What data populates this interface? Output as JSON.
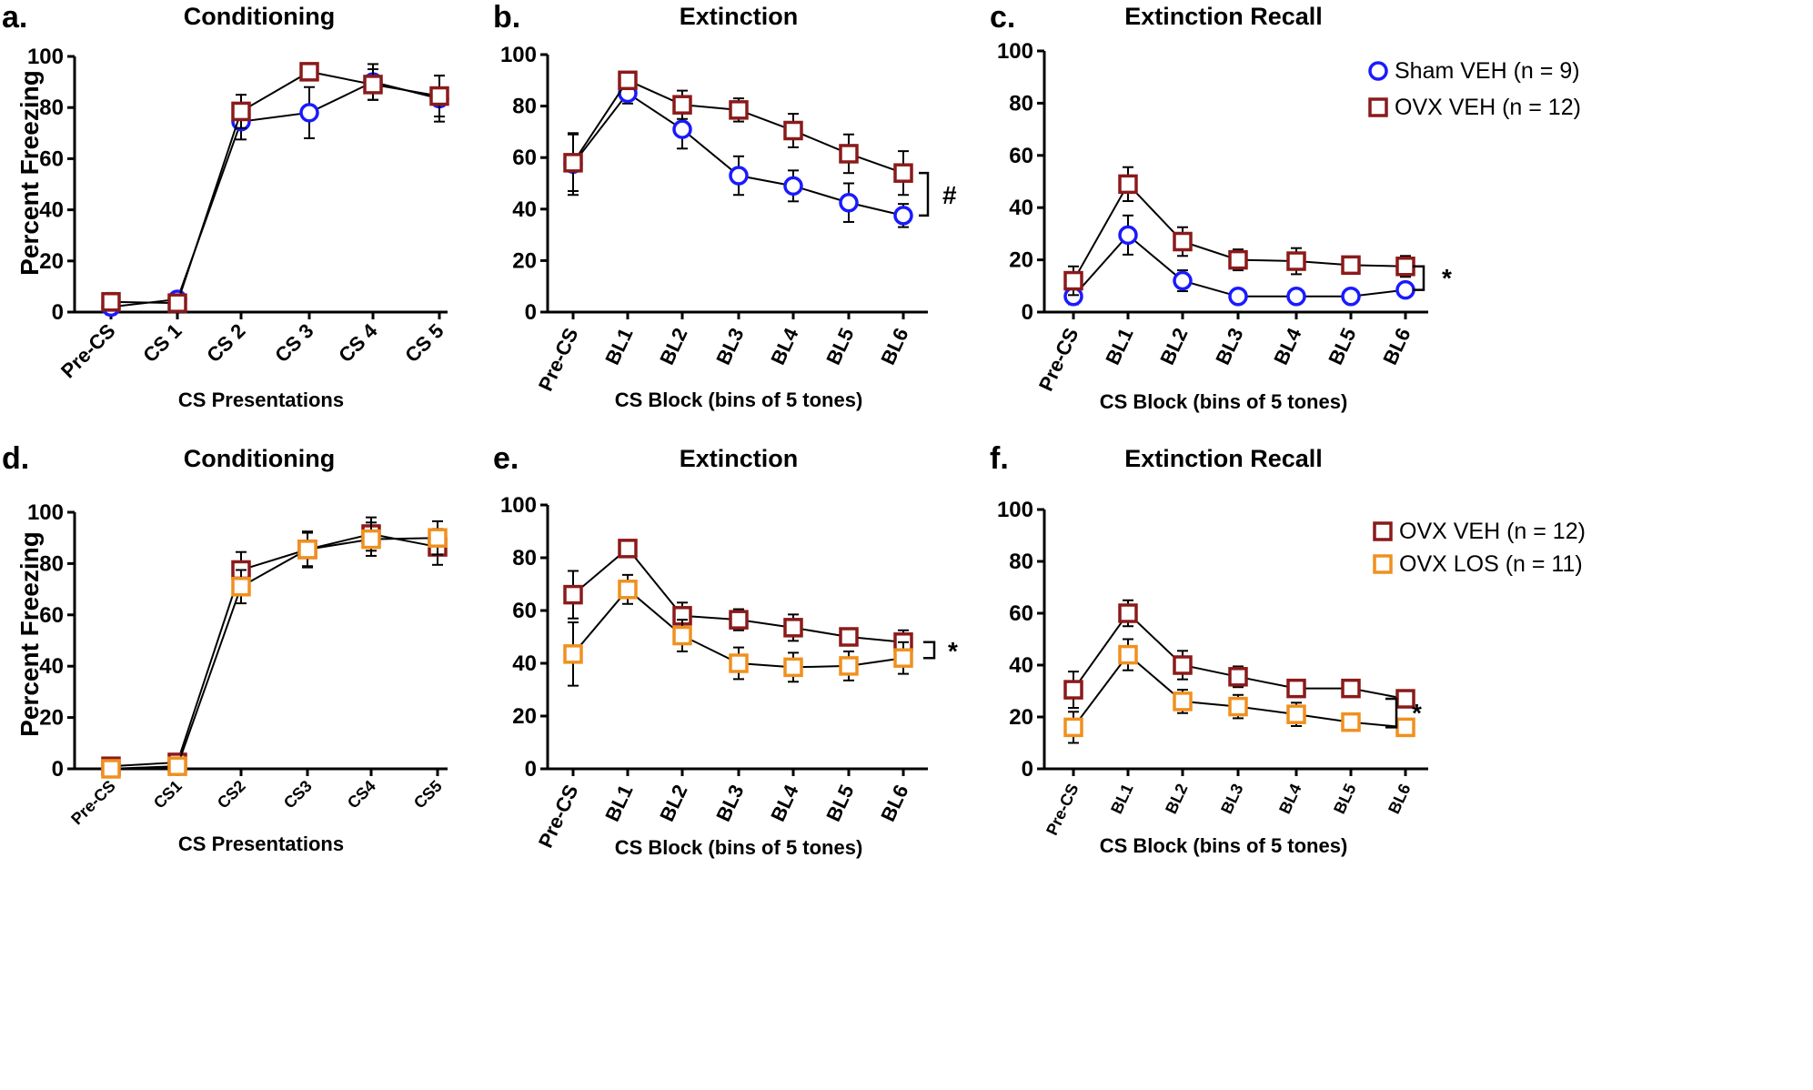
{
  "colors": {
    "sham_veh": "#1a1aff",
    "ovx_veh": "#8b1a1a",
    "ovx_los": "#f0901e",
    "axis": "#000000"
  },
  "chart_data": [
    {
      "panel": "a.",
      "type": "line",
      "title": "Conditioning",
      "xlabel": "CS Presentations",
      "ylabel": "Percent Freezing",
      "ylim": [
        0,
        100
      ],
      "yticks": [
        "0",
        "20",
        "40",
        "60",
        "80",
        "100"
      ],
      "categories": [
        "Pre-CS",
        "CS 1",
        "CS 2",
        "CS 3",
        "CS 4",
        "CS 5"
      ],
      "series": [
        {
          "name": "Sham VEH (n = 9)",
          "marker": "circle",
          "color": "#1a1aff",
          "values": [
            2,
            5,
            74.5,
            78,
            90,
            83.5
          ],
          "errors": [
            3,
            2,
            7,
            10,
            7,
            9
          ]
        },
        {
          "name": "OVX VEH (n = 12)",
          "marker": "square",
          "color": "#8b1a1a",
          "values": [
            4,
            3.5,
            78.5,
            94,
            89,
            84.5
          ],
          "errors": [
            3.5,
            2,
            6.5,
            2,
            6,
            8
          ]
        }
      ],
      "significance": ""
    },
    {
      "panel": "b.",
      "type": "line",
      "title": "Extinction",
      "xlabel": "CS Block (bins of 5 tones)",
      "ylabel": "",
      "ylim": [
        0,
        100
      ],
      "yticks": [
        "0",
        "20",
        "40",
        "60",
        "80",
        "100"
      ],
      "categories": [
        "Pre-CS",
        "BL1",
        "BL2",
        "BL3",
        "BL4",
        "BL5",
        "BL6"
      ],
      "series": [
        {
          "name": "Sham VEH (n = 9)",
          "marker": "circle",
          "color": "#1a1aff",
          "values": [
            57.5,
            85,
            71,
            53,
            49,
            42.5,
            37.5
          ],
          "errors": [
            12,
            4,
            7.5,
            7.5,
            6,
            7.5,
            4.5
          ]
        },
        {
          "name": "OVX VEH (n = 12)",
          "marker": "square",
          "color": "#8b1a1a",
          "values": [
            58,
            90,
            80.5,
            78.5,
            70.5,
            61.5,
            54
          ],
          "errors": [
            11,
            2,
            5.5,
            4.5,
            6.5,
            7.5,
            8.5
          ]
        }
      ],
      "significance": "#"
    },
    {
      "panel": "c.",
      "type": "line",
      "title": "Extinction Recall",
      "xlabel": "CS Block (bins of 5 tones)",
      "ylabel": "",
      "ylim": [
        0,
        100
      ],
      "yticks": [
        "0",
        "20",
        "40",
        "60",
        "80",
        "100"
      ],
      "categories": [
        "Pre-CS",
        "BL1",
        "BL2",
        "BL3",
        "BL4",
        "BL5",
        "BL6"
      ],
      "series": [
        {
          "name": "Sham VEH (n = 9)",
          "marker": "circle",
          "color": "#1a1aff",
          "values": [
            6,
            29.5,
            12,
            6,
            6,
            6,
            8.5
          ],
          "errors": [
            3,
            7.5,
            4,
            1,
            1,
            1.5,
            1.5
          ]
        },
        {
          "name": "OVX VEH (n = 12)",
          "marker": "square",
          "color": "#8b1a1a",
          "values": [
            12,
            49,
            27,
            20,
            19.5,
            18,
            17.5
          ],
          "errors": [
            5.5,
            6.5,
            5.5,
            4,
            5,
            3,
            4
          ]
        }
      ],
      "legend": [
        "Sham VEH (n = 9)",
        "OVX VEH (n = 12)"
      ],
      "legend_position": "top-right",
      "significance": "*"
    },
    {
      "panel": "d.",
      "type": "line",
      "title": "Conditioning",
      "xlabel": "CS Presentations",
      "ylabel": "Percent Freezing",
      "ylim": [
        0,
        100
      ],
      "yticks": [
        "0",
        "20",
        "40",
        "60",
        "80",
        "100"
      ],
      "categories": [
        "Pre-CS",
        "CS1",
        "CS2",
        "CS3",
        "CS4",
        "CS5"
      ],
      "series": [
        {
          "name": "OVX VEH (n = 12)",
          "marker": "square",
          "color": "#8b1a1a",
          "values": [
            1,
            2.5,
            77.5,
            85.5,
            91.5,
            86.5
          ],
          "errors": [
            1.5,
            2,
            7,
            7,
            6.5,
            7
          ]
        },
        {
          "name": "OVX LOS (n = 11)",
          "marker": "square",
          "color": "#f0901e",
          "values": [
            0,
            1,
            71,
            85.5,
            89.5,
            90
          ],
          "errors": [
            1,
            1.5,
            6.5,
            6.5,
            6.5,
            6.5
          ]
        }
      ],
      "significance": ""
    },
    {
      "panel": "e.",
      "type": "line",
      "title": "Extinction",
      "xlabel": "CS Block (bins of 5 tones)",
      "ylabel": "",
      "ylim": [
        0,
        100
      ],
      "yticks": [
        "0",
        "20",
        "40",
        "60",
        "80",
        "100"
      ],
      "categories": [
        "Pre-CS",
        "BL1",
        "BL2",
        "BL3",
        "BL4",
        "BL5",
        "BL6"
      ],
      "series": [
        {
          "name": "OVX VEH (n = 12)",
          "marker": "square",
          "color": "#8b1a1a",
          "values": [
            66,
            83.5,
            58,
            56.5,
            53.5,
            50,
            48
          ],
          "errors": [
            9,
            2,
            5,
            4,
            5,
            3,
            4.5
          ]
        },
        {
          "name": "OVX LOS (n = 11)",
          "marker": "square",
          "color": "#f0901e",
          "values": [
            43.5,
            68,
            50.5,
            40,
            38.5,
            39,
            42
          ],
          "errors": [
            12,
            5.5,
            6,
            6,
            5.5,
            5.5,
            6
          ]
        }
      ],
      "significance": "*"
    },
    {
      "panel": "f.",
      "type": "line",
      "title": "Extinction Recall",
      "xlabel": "CS Block (bins of 5 tones)",
      "ylabel": "",
      "ylim": [
        0,
        100
      ],
      "yticks": [
        "0",
        "20",
        "40",
        "60",
        "80",
        "100"
      ],
      "categories": [
        "Pre-CS",
        "BL1",
        "BL2",
        "BL3",
        "BL4",
        "BL5",
        "BL6"
      ],
      "series": [
        {
          "name": "OVX VEH (n = 12)",
          "marker": "square",
          "color": "#8b1a1a",
          "values": [
            30.5,
            60,
            40,
            35.5,
            31,
            31,
            27
          ],
          "errors": [
            7,
            5,
            5.5,
            4,
            2.5,
            1.5,
            2.5
          ]
        },
        {
          "name": "OVX LOS (n = 11)",
          "marker": "square",
          "color": "#f0901e",
          "values": [
            16,
            44,
            26,
            24,
            21,
            18,
            16
          ],
          "errors": [
            6,
            6,
            4.5,
            4.5,
            4.5,
            3,
            1.5
          ]
        }
      ],
      "legend": [
        "OVX VEH (n = 12)",
        "OVX LOS (n = 11)"
      ],
      "legend_position": "top-right",
      "significance": "*"
    }
  ]
}
